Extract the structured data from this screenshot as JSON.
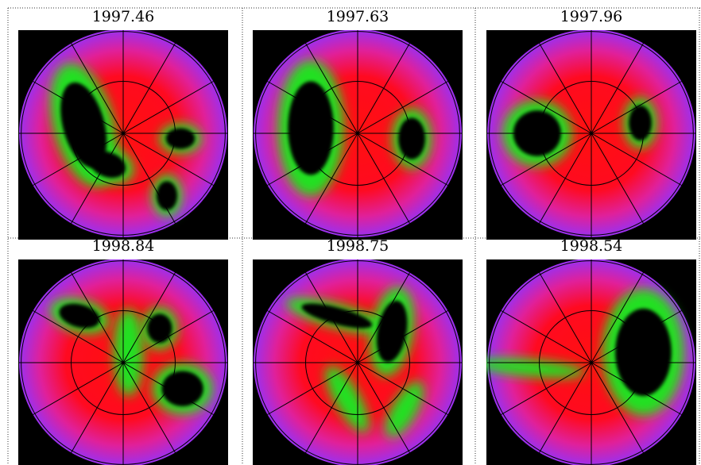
{
  "panels": [
    {
      "label": "1997.46"
    },
    {
      "label": "1997.63"
    },
    {
      "label": "1997.96"
    },
    {
      "label": "1998.84"
    },
    {
      "label": "1998.75"
    },
    {
      "label": "1998.54"
    }
  ]
}
